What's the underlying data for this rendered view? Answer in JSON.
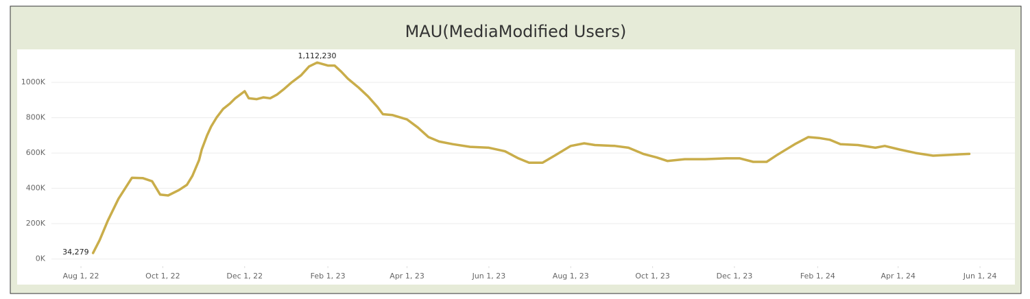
{
  "chart_data": {
    "type": "line",
    "title": "MAU(MediaModified Users)",
    "color": "#c9ad4a",
    "grid": true,
    "x": [
      "2022-08-10",
      "2022-08-15",
      "2022-08-21",
      "2022-08-29",
      "2022-09-08",
      "2022-09-16",
      "2022-09-23",
      "2022-09-29",
      "2022-10-05",
      "2022-10-13",
      "2022-10-19",
      "2022-10-23",
      "2022-10-28",
      "2022-10-30",
      "2022-11-03",
      "2022-11-06",
      "2022-11-10",
      "2022-11-15",
      "2022-11-20",
      "2022-11-24",
      "2022-12-01",
      "2022-12-04",
      "2022-12-10",
      "2022-12-15",
      "2022-12-20",
      "2022-12-25",
      "2022-12-30",
      "2023-01-05",
      "2023-01-12",
      "2023-01-18",
      "2023-01-24",
      "2023-02-01",
      "2023-02-06",
      "2023-02-11",
      "2023-02-16",
      "2023-02-24",
      "2023-03-03",
      "2023-03-10",
      "2023-03-14",
      "2023-03-21",
      "2023-04-01",
      "2023-04-09",
      "2023-04-17",
      "2023-04-25",
      "2023-05-05",
      "2023-05-18",
      "2023-06-01",
      "2023-06-13",
      "2023-06-23",
      "2023-07-01",
      "2023-07-11",
      "2023-07-21",
      "2023-08-01",
      "2023-08-11",
      "2023-08-19",
      "2023-09-03",
      "2023-09-13",
      "2023-09-24",
      "2023-10-04",
      "2023-10-12",
      "2023-10-25",
      "2023-11-09",
      "2023-11-25",
      "2023-12-05",
      "2023-12-15",
      "2023-12-25",
      "2024-01-02",
      "2024-01-15",
      "2024-01-25",
      "2024-02-02",
      "2024-02-10",
      "2024-02-18",
      "2024-03-02",
      "2024-03-15",
      "2024-03-22",
      "2024-04-02",
      "2024-04-14",
      "2024-04-27",
      "2024-05-10",
      "2024-05-24"
    ],
    "values": [
      34279,
      108000,
      217000,
      341000,
      460000,
      458000,
      440000,
      365000,
      360000,
      390000,
      420000,
      470000,
      560000,
      620000,
      700000,
      750000,
      800000,
      850000,
      880000,
      910000,
      950000,
      910000,
      905000,
      915000,
      910000,
      930000,
      960000,
      1000000,
      1040000,
      1090000,
      1112230,
      1095000,
      1095000,
      1060000,
      1020000,
      970000,
      920000,
      860000,
      820000,
      815000,
      790000,
      745000,
      690000,
      665000,
      650000,
      635000,
      630000,
      610000,
      570000,
      545000,
      545000,
      590000,
      640000,
      655000,
      645000,
      640000,
      630000,
      595000,
      575000,
      555000,
      565000,
      565000,
      570000,
      570000,
      550000,
      550000,
      590000,
      650000,
      690000,
      685000,
      675000,
      650000,
      645000,
      630000,
      640000,
      620000,
      600000,
      585000,
      590000,
      595000
    ],
    "value_labels": [
      "34,279",
      null,
      null,
      null,
      null,
      null,
      null,
      null,
      null,
      null,
      null,
      null,
      null,
      null,
      null,
      null,
      null,
      null,
      null,
      null,
      null,
      null,
      null,
      null,
      null,
      null,
      null,
      null,
      null,
      null,
      "1,112,230",
      null,
      null,
      null,
      null,
      null,
      null,
      null,
      null,
      null,
      null,
      null,
      null,
      null,
      null,
      null,
      null,
      null,
      null,
      null,
      null,
      null,
      null,
      null,
      null,
      null,
      null,
      null,
      null,
      null,
      null,
      null,
      null,
      null,
      null,
      null,
      null,
      null,
      null,
      null,
      null,
      null,
      null,
      null,
      null,
      null,
      null,
      null,
      null,
      null
    ],
    "xlim": [
      "2022-07-10",
      "2024-06-27"
    ],
    "xticks": [
      {
        "value": "2022-08-01",
        "label": "Aug 1, 22"
      },
      {
        "value": "2022-10-01",
        "label": "Oct 1, 22"
      },
      {
        "value": "2022-12-01",
        "label": "Dec 1, 22"
      },
      {
        "value": "2023-02-01",
        "label": "Feb 1, 23"
      },
      {
        "value": "2023-04-01",
        "label": "Apr 1, 23"
      },
      {
        "value": "2023-06-01",
        "label": "Jun 1, 23"
      },
      {
        "value": "2023-08-01",
        "label": "Aug 1, 23"
      },
      {
        "value": "2023-10-01",
        "label": "Oct 1, 23"
      },
      {
        "value": "2023-12-01",
        "label": "Dec 1, 23"
      },
      {
        "value": "2024-02-01",
        "label": "Feb 1, 24"
      },
      {
        "value": "2024-04-01",
        "label": "Apr 1, 24"
      },
      {
        "value": "2024-06-01",
        "label": "Jun 1, 24"
      }
    ],
    "ylim": [
      -40000,
      1175000
    ],
    "yticks": [
      {
        "value": 0,
        "label": "0K"
      },
      {
        "value": 200000,
        "label": "200K"
      },
      {
        "value": 400000,
        "label": "400K"
      },
      {
        "value": 600000,
        "label": "600K"
      },
      {
        "value": 800000,
        "label": "800K"
      },
      {
        "value": 1000000,
        "label": "1000K"
      }
    ]
  }
}
